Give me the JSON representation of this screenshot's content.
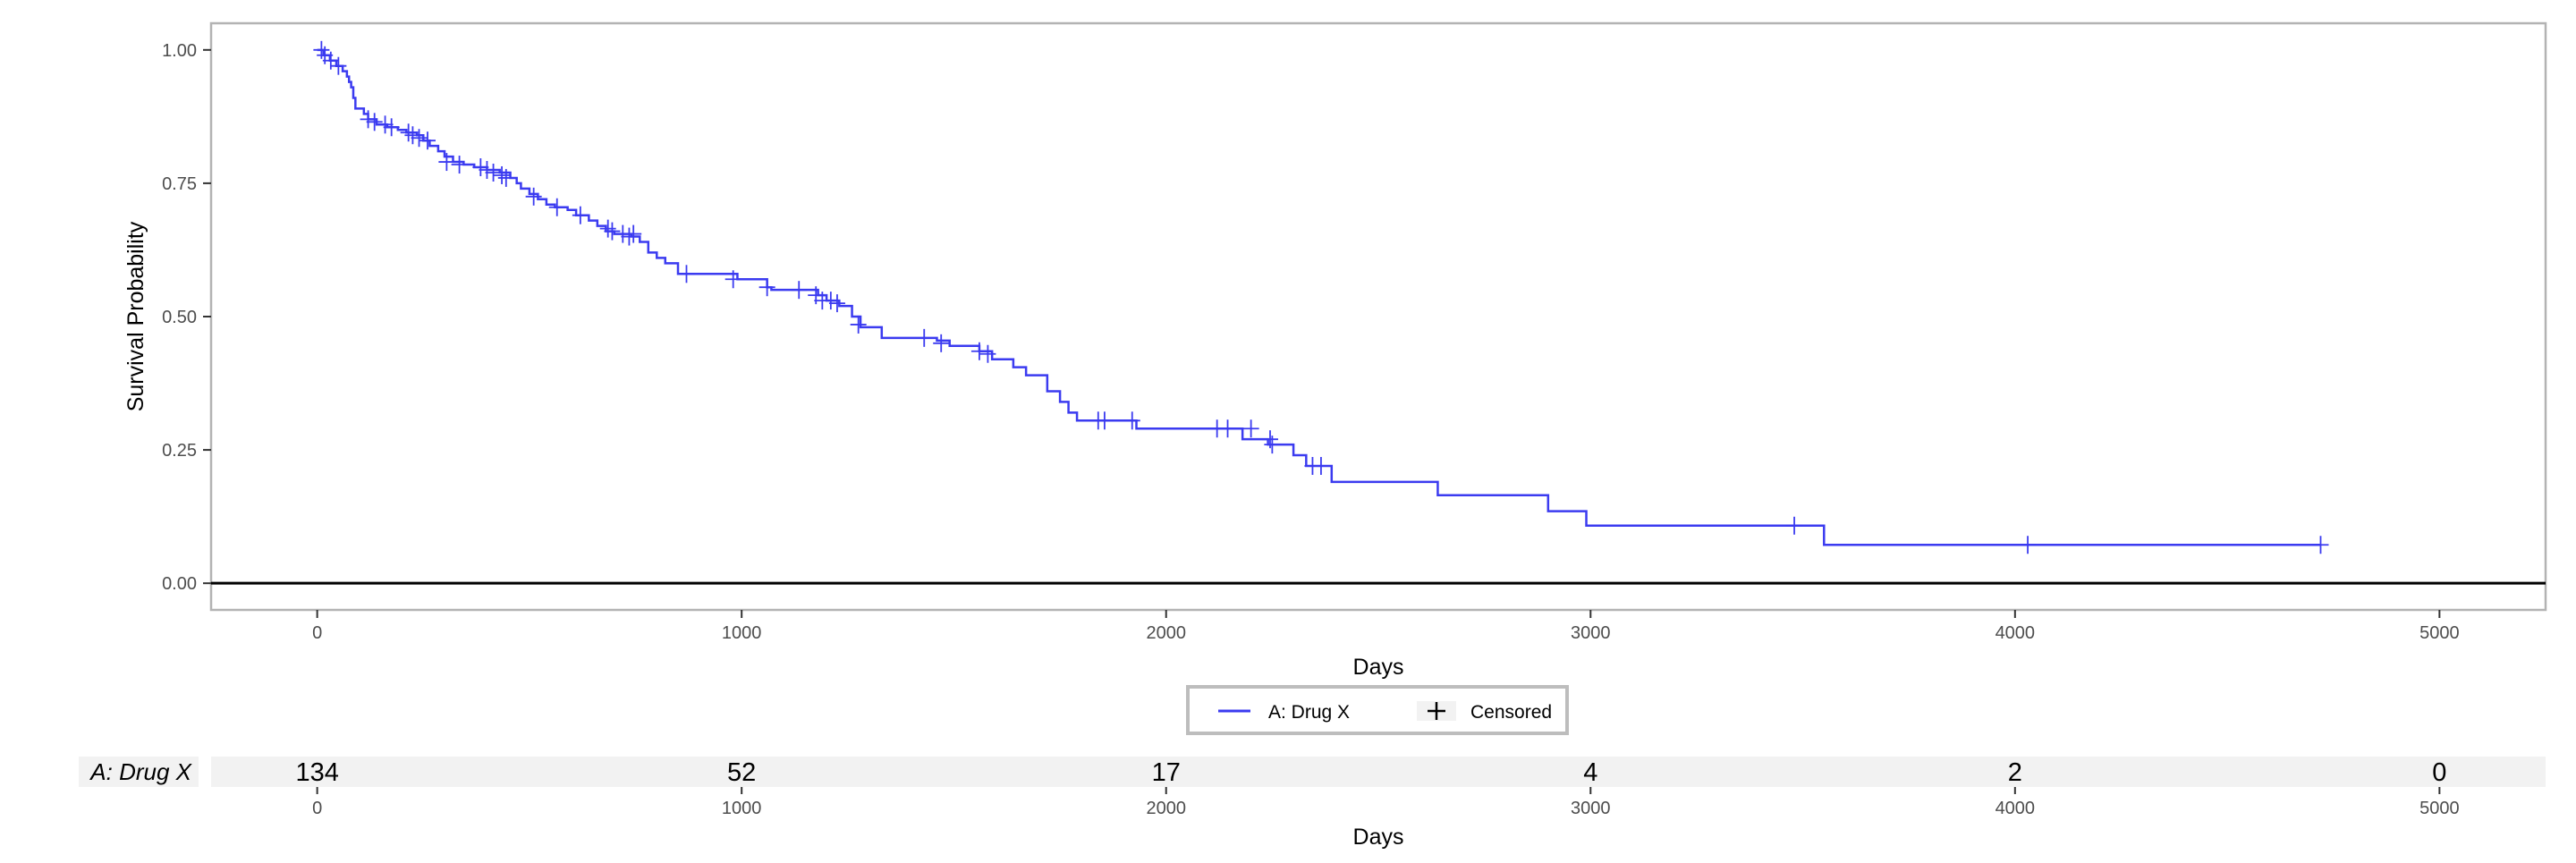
{
  "chart_data": {
    "type": "line",
    "title": "",
    "xlabel": "Days",
    "ylabel": "Survival Probability",
    "xlim": [
      -250,
      5250
    ],
    "ylim": [
      -0.05,
      1.05
    ],
    "x_ticks": [
      0,
      1000,
      2000,
      3000,
      4000,
      5000
    ],
    "y_ticks": [
      0.0,
      0.25,
      0.5,
      0.75,
      1.0
    ],
    "y_tick_labels": [
      "0.00",
      "0.25",
      "0.50",
      "0.75",
      "1.00"
    ],
    "grid": false,
    "legend": {
      "position": "bottom",
      "entries": [
        "A: Drug X",
        "Censored"
      ]
    },
    "series": [
      {
        "name": "A: Drug X",
        "color": "#3b3bf0",
        "steps": [
          [
            0,
            1.0
          ],
          [
            15,
            0.99
          ],
          [
            30,
            0.98
          ],
          [
            45,
            0.97
          ],
          [
            60,
            0.96
          ],
          [
            70,
            0.95
          ],
          [
            75,
            0.94
          ],
          [
            80,
            0.93
          ],
          [
            85,
            0.91
          ],
          [
            90,
            0.89
          ],
          [
            110,
            0.88
          ],
          [
            120,
            0.87
          ],
          [
            140,
            0.86
          ],
          [
            165,
            0.855
          ],
          [
            190,
            0.85
          ],
          [
            210,
            0.845
          ],
          [
            235,
            0.84
          ],
          [
            250,
            0.83
          ],
          [
            265,
            0.82
          ],
          [
            285,
            0.81
          ],
          [
            300,
            0.8
          ],
          [
            320,
            0.79
          ],
          [
            345,
            0.785
          ],
          [
            370,
            0.78
          ],
          [
            400,
            0.775
          ],
          [
            430,
            0.77
          ],
          [
            455,
            0.76
          ],
          [
            470,
            0.75
          ],
          [
            480,
            0.74
          ],
          [
            500,
            0.73
          ],
          [
            520,
            0.72
          ],
          [
            540,
            0.71
          ],
          [
            560,
            0.705
          ],
          [
            590,
            0.7
          ],
          [
            610,
            0.69
          ],
          [
            640,
            0.68
          ],
          [
            660,
            0.67
          ],
          [
            680,
            0.66
          ],
          [
            700,
            0.655
          ],
          [
            740,
            0.65
          ],
          [
            760,
            0.64
          ],
          [
            780,
            0.62
          ],
          [
            800,
            0.61
          ],
          [
            820,
            0.6
          ],
          [
            850,
            0.58
          ],
          [
            990,
            0.57
          ],
          [
            1060,
            0.555
          ],
          [
            1070,
            0.55
          ],
          [
            1180,
            0.54
          ],
          [
            1200,
            0.53
          ],
          [
            1230,
            0.52
          ],
          [
            1260,
            0.5
          ],
          [
            1280,
            0.48
          ],
          [
            1330,
            0.46
          ],
          [
            1460,
            0.455
          ],
          [
            1490,
            0.445
          ],
          [
            1560,
            0.435
          ],
          [
            1590,
            0.42
          ],
          [
            1640,
            0.405
          ],
          [
            1670,
            0.39
          ],
          [
            1720,
            0.36
          ],
          [
            1750,
            0.34
          ],
          [
            1770,
            0.32
          ],
          [
            1790,
            0.305
          ],
          [
            1930,
            0.29
          ],
          [
            2180,
            0.27
          ],
          [
            2240,
            0.26
          ],
          [
            2300,
            0.24
          ],
          [
            2330,
            0.22
          ],
          [
            2390,
            0.19
          ],
          [
            2640,
            0.165
          ],
          [
            2900,
            0.135
          ],
          [
            2990,
            0.108
          ],
          [
            3550,
            0.072
          ],
          [
            4720,
            0.072
          ]
        ],
        "censored": [
          [
            10,
            1.0
          ],
          [
            18,
            0.99
          ],
          [
            32,
            0.98
          ],
          [
            50,
            0.97
          ],
          [
            120,
            0.87
          ],
          [
            135,
            0.865
          ],
          [
            160,
            0.86
          ],
          [
            175,
            0.855
          ],
          [
            215,
            0.845
          ],
          [
            225,
            0.84
          ],
          [
            240,
            0.835
          ],
          [
            260,
            0.83
          ],
          [
            305,
            0.79
          ],
          [
            335,
            0.785
          ],
          [
            385,
            0.78
          ],
          [
            400,
            0.775
          ],
          [
            415,
            0.77
          ],
          [
            435,
            0.765
          ],
          [
            445,
            0.76
          ],
          [
            510,
            0.725
          ],
          [
            565,
            0.705
          ],
          [
            620,
            0.69
          ],
          [
            685,
            0.665
          ],
          [
            695,
            0.66
          ],
          [
            720,
            0.655
          ],
          [
            735,
            0.65
          ],
          [
            745,
            0.655
          ],
          [
            870,
            0.58
          ],
          [
            980,
            0.57
          ],
          [
            1060,
            0.555
          ],
          [
            1135,
            0.55
          ],
          [
            1175,
            0.54
          ],
          [
            1190,
            0.53
          ],
          [
            1210,
            0.53
          ],
          [
            1225,
            0.525
          ],
          [
            1275,
            0.485
          ],
          [
            1430,
            0.46
          ],
          [
            1470,
            0.45
          ],
          [
            1560,
            0.435
          ],
          [
            1580,
            0.43
          ],
          [
            1840,
            0.305
          ],
          [
            1855,
            0.305
          ],
          [
            1920,
            0.305
          ],
          [
            2120,
            0.29
          ],
          [
            2145,
            0.29
          ],
          [
            2200,
            0.29
          ],
          [
            2245,
            0.27
          ],
          [
            2250,
            0.26
          ],
          [
            2345,
            0.22
          ],
          [
            2365,
            0.22
          ],
          [
            3480,
            0.108
          ],
          [
            4030,
            0.072
          ],
          [
            4720,
            0.072
          ]
        ]
      }
    ],
    "risk_table": {
      "strata_label": "A: Drug X",
      "times": [
        0,
        1000,
        2000,
        3000,
        4000,
        5000
      ],
      "counts": [
        "134",
        "52",
        "17",
        "4",
        "2",
        "0"
      ],
      "xlabel": "Days"
    }
  }
}
